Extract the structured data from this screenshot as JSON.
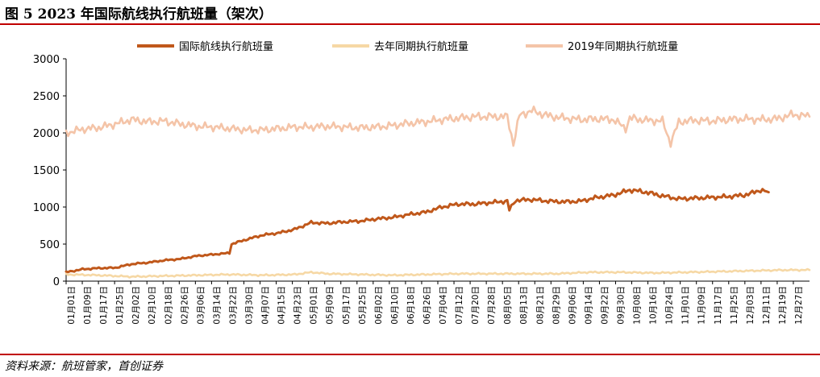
{
  "figure": {
    "title": "图 5 2023 年国际航线执行航班量（架次）",
    "source": "资料来源：航班管家，首创证券"
  },
  "chart_data": {
    "type": "line",
    "ylim": [
      0,
      3000
    ],
    "yticks": [
      0,
      500,
      1000,
      1500,
      2000,
      2500,
      3000
    ],
    "grid": false,
    "legend_position": "top",
    "x_tick_labels": [
      "01月01日",
      "01月09日",
      "01月17日",
      "01月25日",
      "02月02日",
      "02月10日",
      "02月18日",
      "02月26日",
      "03月06日",
      "03月14日",
      "03月22日",
      "03月30日",
      "04月07日",
      "04月15日",
      "04月23日",
      "05月01日",
      "05月09日",
      "05月17日",
      "05月25日",
      "06月02日",
      "06月10日",
      "06月18日",
      "06月26日",
      "07月04日",
      "07月12日",
      "07月20日",
      "07月28日",
      "08月05日",
      "08月13日",
      "08月21日",
      "08月29日",
      "09月06日",
      "09月14日",
      "09月22日",
      "09月30日",
      "10月08日",
      "10月16日",
      "10月24日",
      "11月01日",
      "11月09日",
      "11月17日",
      "11月25日",
      "12月03日",
      "12月11日",
      "12月19日",
      "12月27日"
    ],
    "x_day_range": [
      1,
      365
    ],
    "series": [
      {
        "name": "国际航线执行航班量",
        "color": "#c0581b",
        "points": [
          [
            1,
            120
          ],
          [
            9,
            160
          ],
          [
            17,
            175
          ],
          [
            25,
            180
          ],
          [
            33,
            230
          ],
          [
            41,
            250
          ],
          [
            49,
            280
          ],
          [
            57,
            300
          ],
          [
            65,
            340
          ],
          [
            73,
            360
          ],
          [
            81,
            380
          ],
          [
            82,
            500
          ],
          [
            89,
            560
          ],
          [
            97,
            620
          ],
          [
            105,
            650
          ],
          [
            113,
            700
          ],
          [
            121,
            790
          ],
          [
            129,
            780
          ],
          [
            137,
            800
          ],
          [
            145,
            810
          ],
          [
            153,
            840
          ],
          [
            161,
            860
          ],
          [
            169,
            900
          ],
          [
            177,
            930
          ],
          [
            185,
            1000
          ],
          [
            193,
            1040
          ],
          [
            201,
            1040
          ],
          [
            209,
            1060
          ],
          [
            217,
            1080
          ],
          [
            218,
            960
          ],
          [
            221,
            1090
          ],
          [
            229,
            1100
          ],
          [
            237,
            1080
          ],
          [
            245,
            1070
          ],
          [
            253,
            1080
          ],
          [
            261,
            1130
          ],
          [
            269,
            1160
          ],
          [
            277,
            1230
          ],
          [
            285,
            1200
          ],
          [
            293,
            1150
          ],
          [
            301,
            1110
          ],
          [
            309,
            1120
          ],
          [
            317,
            1130
          ],
          [
            325,
            1140
          ],
          [
            333,
            1160
          ],
          [
            337,
            1190
          ],
          [
            341,
            1230
          ],
          [
            345,
            1200
          ]
        ]
      },
      {
        "name": "去年同期执行航班量",
        "color": "#f6d8a5",
        "points": [
          [
            1,
            90
          ],
          [
            17,
            80
          ],
          [
            33,
            60
          ],
          [
            49,
            70
          ],
          [
            65,
            80
          ],
          [
            81,
            90
          ],
          [
            97,
            80
          ],
          [
            113,
            90
          ],
          [
            121,
            120
          ],
          [
            129,
            100
          ],
          [
            145,
            90
          ],
          [
            161,
            80
          ],
          [
            177,
            90
          ],
          [
            193,
            100
          ],
          [
            209,
            100
          ],
          [
            225,
            100
          ],
          [
            241,
            100
          ],
          [
            257,
            120
          ],
          [
            273,
            120
          ],
          [
            289,
            110
          ],
          [
            305,
            120
          ],
          [
            321,
            130
          ],
          [
            337,
            140
          ],
          [
            353,
            150
          ],
          [
            365,
            150
          ]
        ]
      },
      {
        "name": "2019年同期执行航班量",
        "color": "#f4c4a8",
        "points": [
          [
            1,
            2000
          ],
          [
            9,
            2050
          ],
          [
            17,
            2070
          ],
          [
            25,
            2120
          ],
          [
            33,
            2180
          ],
          [
            41,
            2150
          ],
          [
            49,
            2160
          ],
          [
            57,
            2120
          ],
          [
            65,
            2090
          ],
          [
            73,
            2080
          ],
          [
            81,
            2060
          ],
          [
            89,
            2040
          ],
          [
            97,
            2040
          ],
          [
            105,
            2060
          ],
          [
            113,
            2080
          ],
          [
            121,
            2080
          ],
          [
            129,
            2090
          ],
          [
            137,
            2080
          ],
          [
            145,
            2070
          ],
          [
            153,
            2080
          ],
          [
            161,
            2100
          ],
          [
            169,
            2130
          ],
          [
            177,
            2150
          ],
          [
            185,
            2180
          ],
          [
            193,
            2200
          ],
          [
            201,
            2220
          ],
          [
            209,
            2220
          ],
          [
            217,
            2220
          ],
          [
            220,
            1850
          ],
          [
            223,
            2240
          ],
          [
            229,
            2300
          ],
          [
            237,
            2230
          ],
          [
            245,
            2200
          ],
          [
            253,
            2180
          ],
          [
            261,
            2190
          ],
          [
            269,
            2180
          ],
          [
            275,
            2060
          ],
          [
            277,
            2200
          ],
          [
            285,
            2170
          ],
          [
            293,
            2160
          ],
          [
            297,
            1860
          ],
          [
            301,
            2150
          ],
          [
            309,
            2170
          ],
          [
            317,
            2160
          ],
          [
            325,
            2180
          ],
          [
            333,
            2190
          ],
          [
            341,
            2180
          ],
          [
            349,
            2190
          ],
          [
            357,
            2250
          ],
          [
            365,
            2220
          ]
        ]
      }
    ]
  }
}
